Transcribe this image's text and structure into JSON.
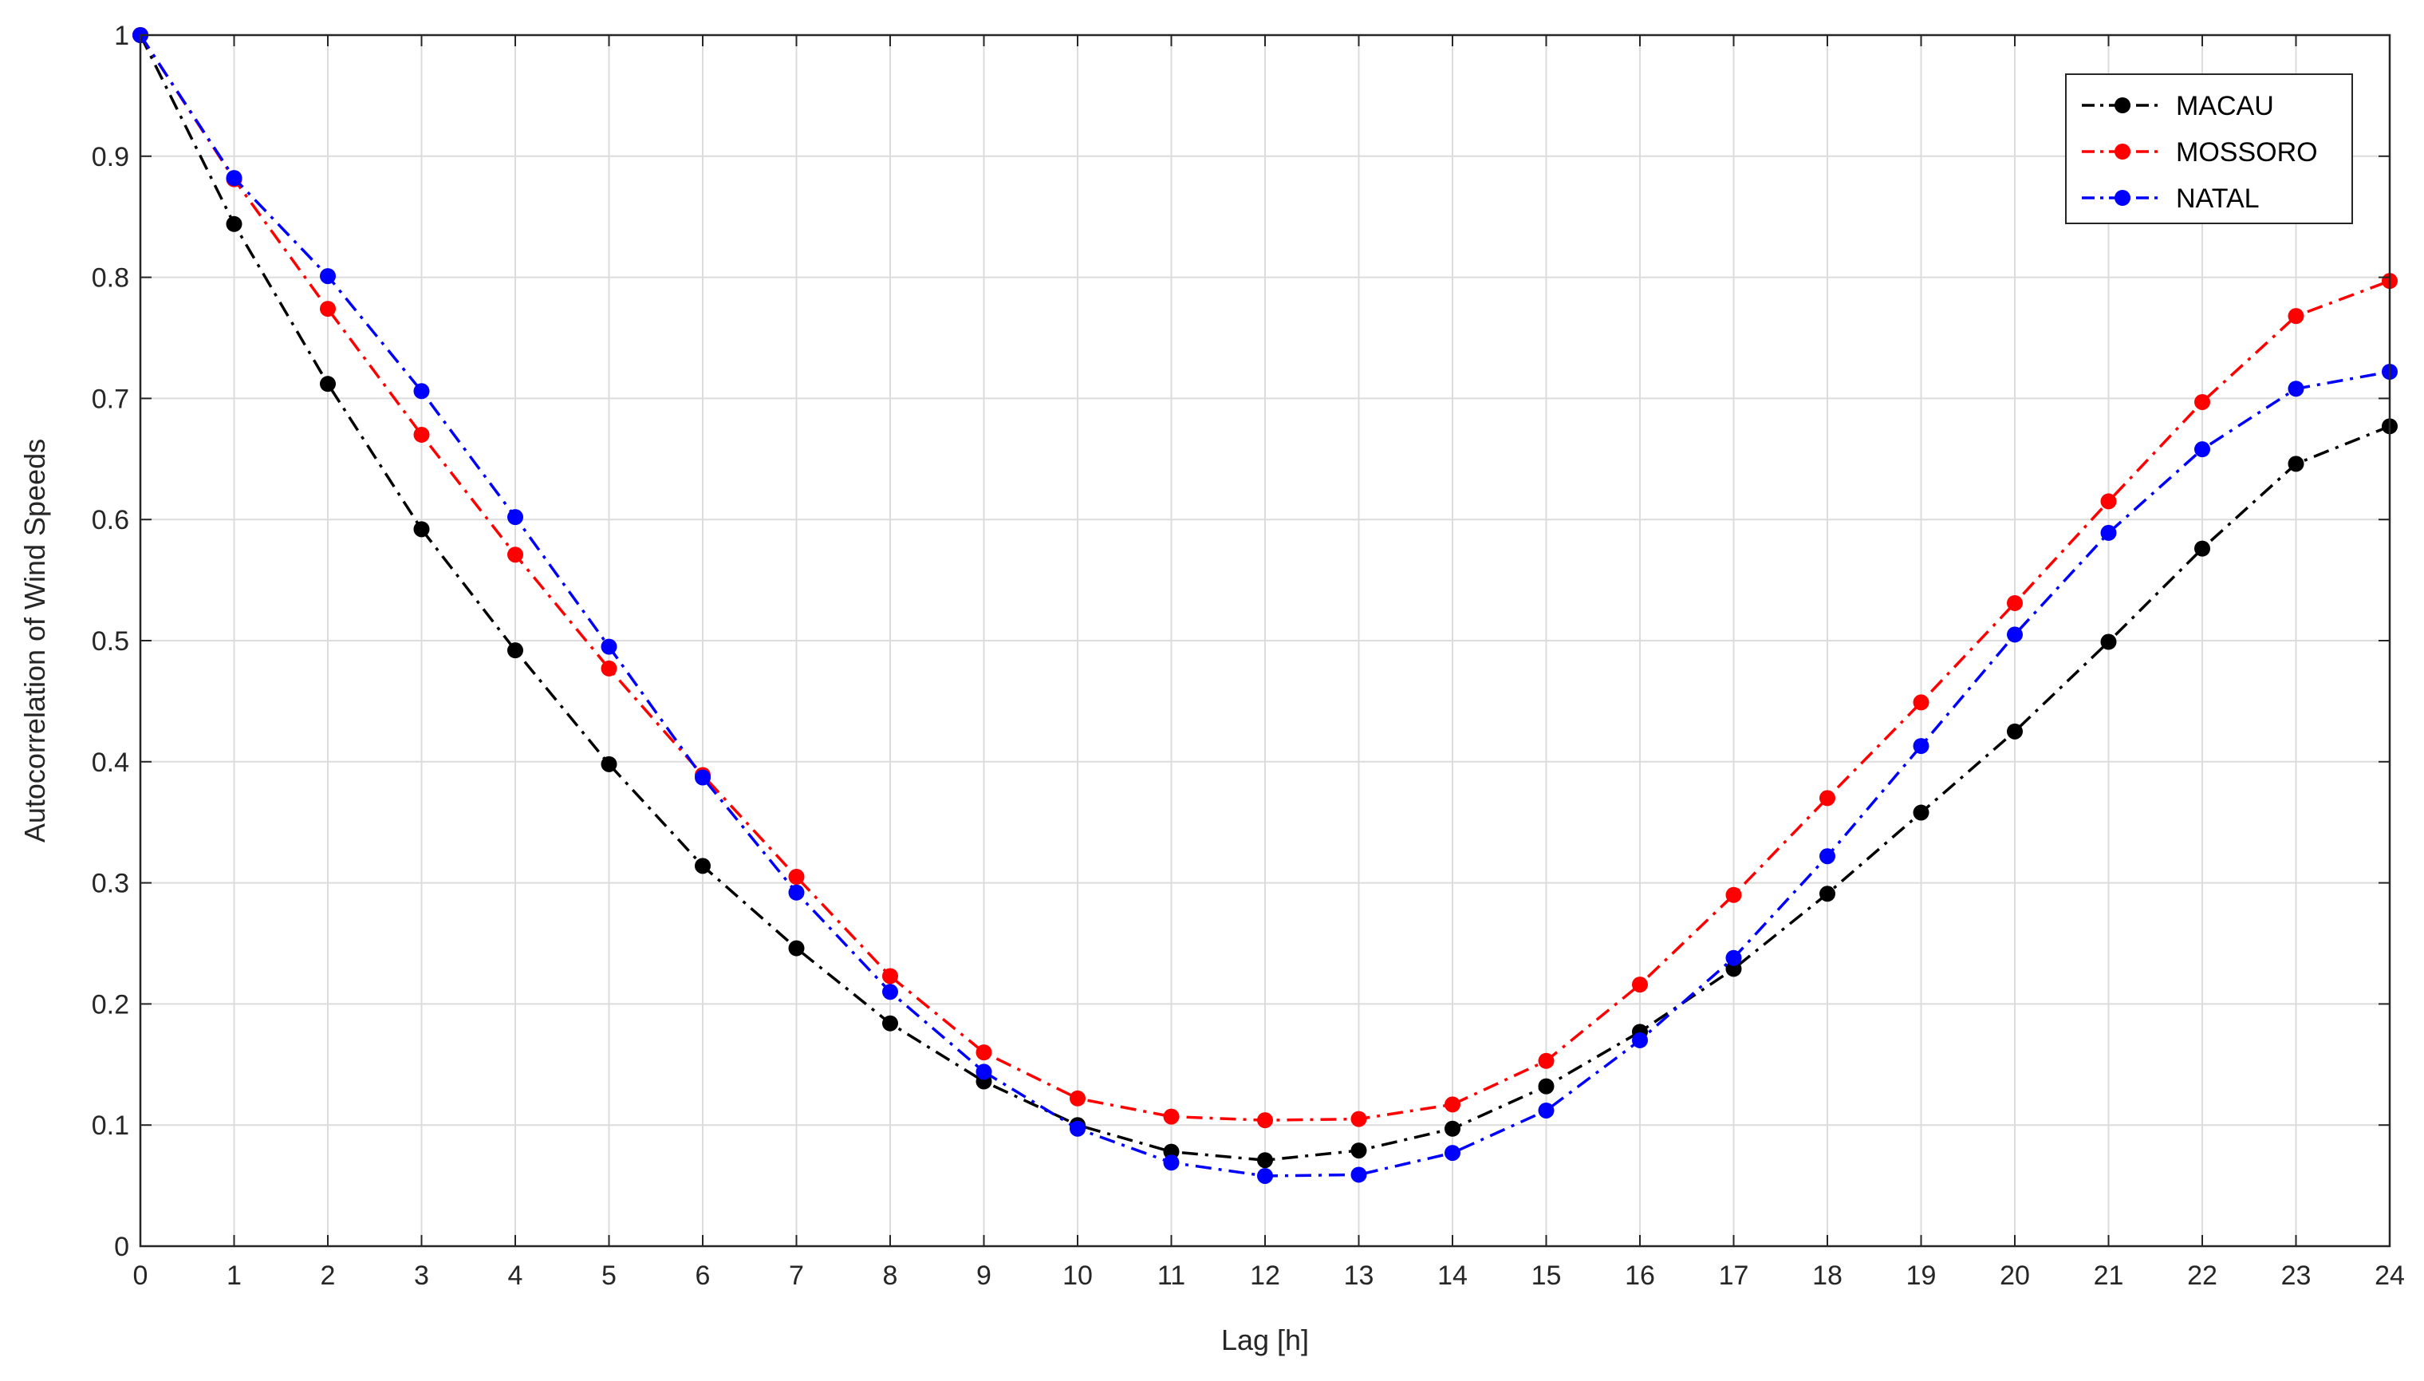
{
  "chart_data": {
    "type": "line",
    "title": "",
    "xlabel": "Lag [h]",
    "ylabel": "Autocorrelation of Wind Speeds",
    "xlim": [
      0,
      24
    ],
    "ylim": [
      0,
      1
    ],
    "grid": true,
    "legend_position": "top-right",
    "x": [
      0,
      1,
      2,
      3,
      4,
      5,
      6,
      7,
      8,
      9,
      10,
      11,
      12,
      13,
      14,
      15,
      16,
      17,
      18,
      19,
      20,
      21,
      22,
      23,
      24
    ],
    "x_ticks": [
      "0",
      "1",
      "2",
      "3",
      "4",
      "5",
      "6",
      "7",
      "8",
      "9",
      "10",
      "11",
      "12",
      "13",
      "14",
      "15",
      "16",
      "17",
      "18",
      "19",
      "20",
      "21",
      "22",
      "23",
      "24"
    ],
    "y_ticks": [
      "0",
      "0.1",
      "0.2",
      "0.3",
      "0.4",
      "0.5",
      "0.6",
      "0.7",
      "0.8",
      "0.9",
      "1"
    ],
    "series": [
      {
        "name": "MACAU",
        "color": "#000000",
        "values": [
          1.0,
          0.844,
          0.712,
          0.592,
          0.492,
          0.398,
          0.314,
          0.246,
          0.184,
          0.136,
          0.1,
          0.078,
          0.071,
          0.079,
          0.097,
          0.132,
          0.177,
          0.229,
          0.291,
          0.358,
          0.425,
          0.499,
          0.576,
          0.646,
          0.677
        ]
      },
      {
        "name": "MOSSORO",
        "color": "#ff0000",
        "values": [
          1.0,
          0.881,
          0.774,
          0.67,
          0.571,
          0.477,
          0.389,
          0.305,
          0.223,
          0.16,
          0.122,
          0.107,
          0.104,
          0.105,
          0.117,
          0.153,
          0.216,
          0.29,
          0.37,
          0.449,
          0.531,
          0.615,
          0.697,
          0.768,
          0.797
        ]
      },
      {
        "name": "NATAL",
        "color": "#0000ff",
        "values": [
          1.0,
          0.882,
          0.801,
          0.706,
          0.602,
          0.495,
          0.387,
          0.292,
          0.21,
          0.144,
          0.097,
          0.069,
          0.058,
          0.059,
          0.077,
          0.112,
          0.17,
          0.238,
          0.322,
          0.413,
          0.505,
          0.589,
          0.658,
          0.708,
          0.722
        ]
      }
    ]
  }
}
